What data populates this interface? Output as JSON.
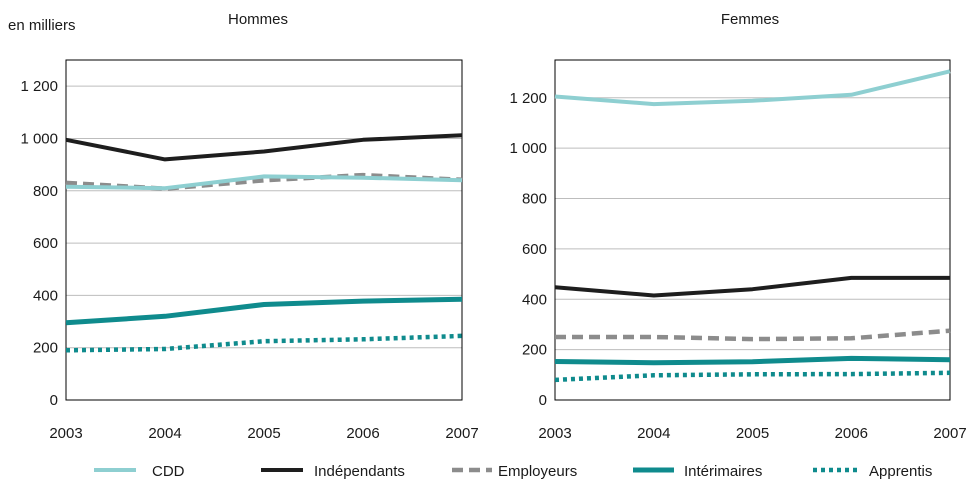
{
  "unit_label": "en milliers",
  "colors": {
    "CDD": "#8ecfd1",
    "Indépendants": "#1e1e1e",
    "Employeurs": "#8c8c8c",
    "Intérimaires": "#0f8b8d",
    "Apprentis": "#0f8b8d"
  },
  "chart_data": [
    {
      "type": "line",
      "title": "Hommes",
      "x": [
        "2003",
        "2004",
        "2005",
        "2006",
        "2007"
      ],
      "ylim": [
        0,
        1300
      ],
      "yticks": [
        "0",
        "200",
        "400",
        "600",
        "800",
        "1 000",
        "1 200"
      ],
      "grid": true,
      "series": [
        {
          "name": "CDD",
          "values": [
            815,
            810,
            855,
            850,
            840
          ]
        },
        {
          "name": "Indépendants",
          "values": [
            995,
            920,
            950,
            995,
            1012
          ]
        },
        {
          "name": "Employeurs",
          "values": [
            830,
            808,
            840,
            860,
            842
          ]
        },
        {
          "name": "Intérimaires",
          "values": [
            295,
            320,
            365,
            378,
            385
          ]
        },
        {
          "name": "Apprentis",
          "values": [
            190,
            195,
            225,
            232,
            245
          ]
        }
      ]
    },
    {
      "type": "line",
      "title": "Femmes",
      "x": [
        "2003",
        "2004",
        "2005",
        "2006",
        "2007"
      ],
      "ylim": [
        0,
        1350
      ],
      "yticks": [
        "0",
        "200",
        "400",
        "600",
        "800",
        "1 000",
        "1 200"
      ],
      "grid": true,
      "series": [
        {
          "name": "CDD",
          "values": [
            1205,
            1175,
            1188,
            1212,
            1305
          ]
        },
        {
          "name": "Indépendants",
          "values": [
            448,
            415,
            440,
            485,
            485
          ]
        },
        {
          "name": "Employeurs",
          "values": [
            250,
            250,
            242,
            245,
            275
          ]
        },
        {
          "name": "Intérimaires",
          "values": [
            153,
            148,
            152,
            165,
            160
          ]
        },
        {
          "name": "Apprentis",
          "values": [
            80,
            98,
            102,
            103,
            108
          ]
        }
      ]
    }
  ],
  "legend": {
    "placement": "bottom",
    "items": [
      "CDD",
      "Indépendants",
      "Employeurs",
      "Intérimaires",
      "Apprentis"
    ]
  }
}
